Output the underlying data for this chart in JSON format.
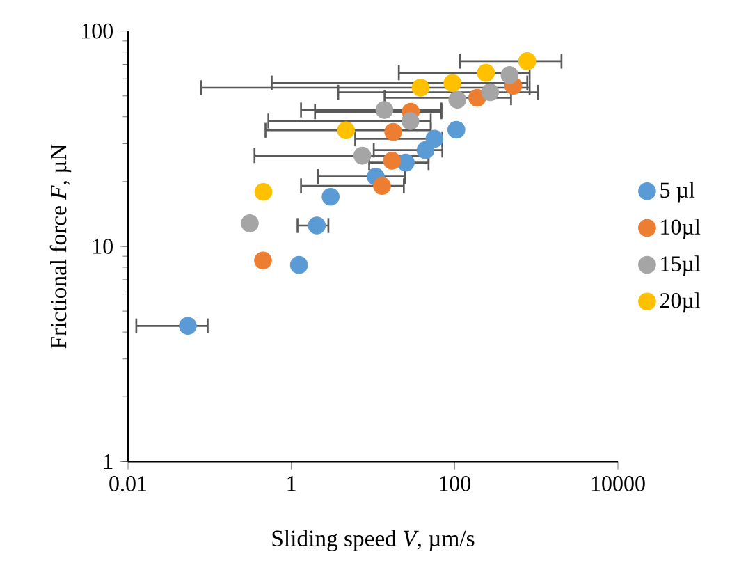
{
  "chart_data": {
    "type": "scatter",
    "xlabel": "Sliding speed *V*, µm/s",
    "ylabel": "Frictional force *F*, µN",
    "log": "xy",
    "xlim": [
      0.01,
      10000
    ],
    "ylim": [
      1,
      100
    ],
    "xticks": [
      0.01,
      1,
      100,
      10000
    ],
    "yticks": [
      1,
      10,
      100
    ],
    "marker": "circle",
    "legend": "right",
    "grid": false,
    "series": [
      {
        "name": "5 µl",
        "color": "#5b9bd5",
        "x": [
          0.054,
          1.24,
          2.05,
          3.03,
          10.8,
          25.2,
          44,
          56.6,
          105
        ],
        "values": [
          4.27,
          8.2,
          12.5,
          17.0,
          21.1,
          24.5,
          28.0,
          31.6,
          34.8
        ],
        "xerrors": [
          [
            0.0123,
            0.097
          ],
          null,
          [
            1.16,
            2.92
          ],
          null,
          [
            2.07,
            25.2
          ],
          [
            8.75,
            49.2
          ],
          [
            9.96,
            72.6
          ],
          [
            5.9,
            72.6
          ],
          null
        ]
      },
      {
        "name": "10µl",
        "color": "#ed7d31",
        "x": [
          0.45,
          12.9,
          17.1,
          17.7,
          29,
          189,
          523
        ],
        "values": [
          8.6,
          19.1,
          25,
          34,
          42.2,
          49,
          55.7
        ],
        "xerrors": [
          null,
          [
            1.28,
            24.5
          ],
          null,
          null,
          [
            1.9,
            70.8
          ],
          [
            13.5,
            504
          ],
          null
        ]
      },
      {
        "name": "15µl",
        "color": "#a5a5a5",
        "x": [
          0.31,
          7.4,
          28.7,
          13.8,
          108,
          272,
          471
        ],
        "values": [
          12.8,
          26.4,
          38.2,
          43,
          48,
          52,
          62.5
        ],
        "xerrors": [
          null,
          [
            0.345,
            49.2
          ],
          [
            0.51,
            52.4
          ],
          [
            1.28,
            70.8
          ],
          null,
          [
            3.66,
            1074
          ],
          null
        ]
      },
      {
        "name": "20µl",
        "color": "#ffc000",
        "x": [
          0.455,
          4.67,
          38.3,
          94,
          242,
          775
        ],
        "values": [
          17.9,
          34.6,
          54.6,
          57.4,
          64,
          72.5
        ],
        "xerrors": [
          null,
          [
            0.47,
            52.4
          ],
          [
            0.076,
            851
          ],
          [
            0.56,
            796
          ],
          [
            20.2,
            851
          ],
          [
            113,
            2090
          ]
        ]
      }
    ]
  }
}
